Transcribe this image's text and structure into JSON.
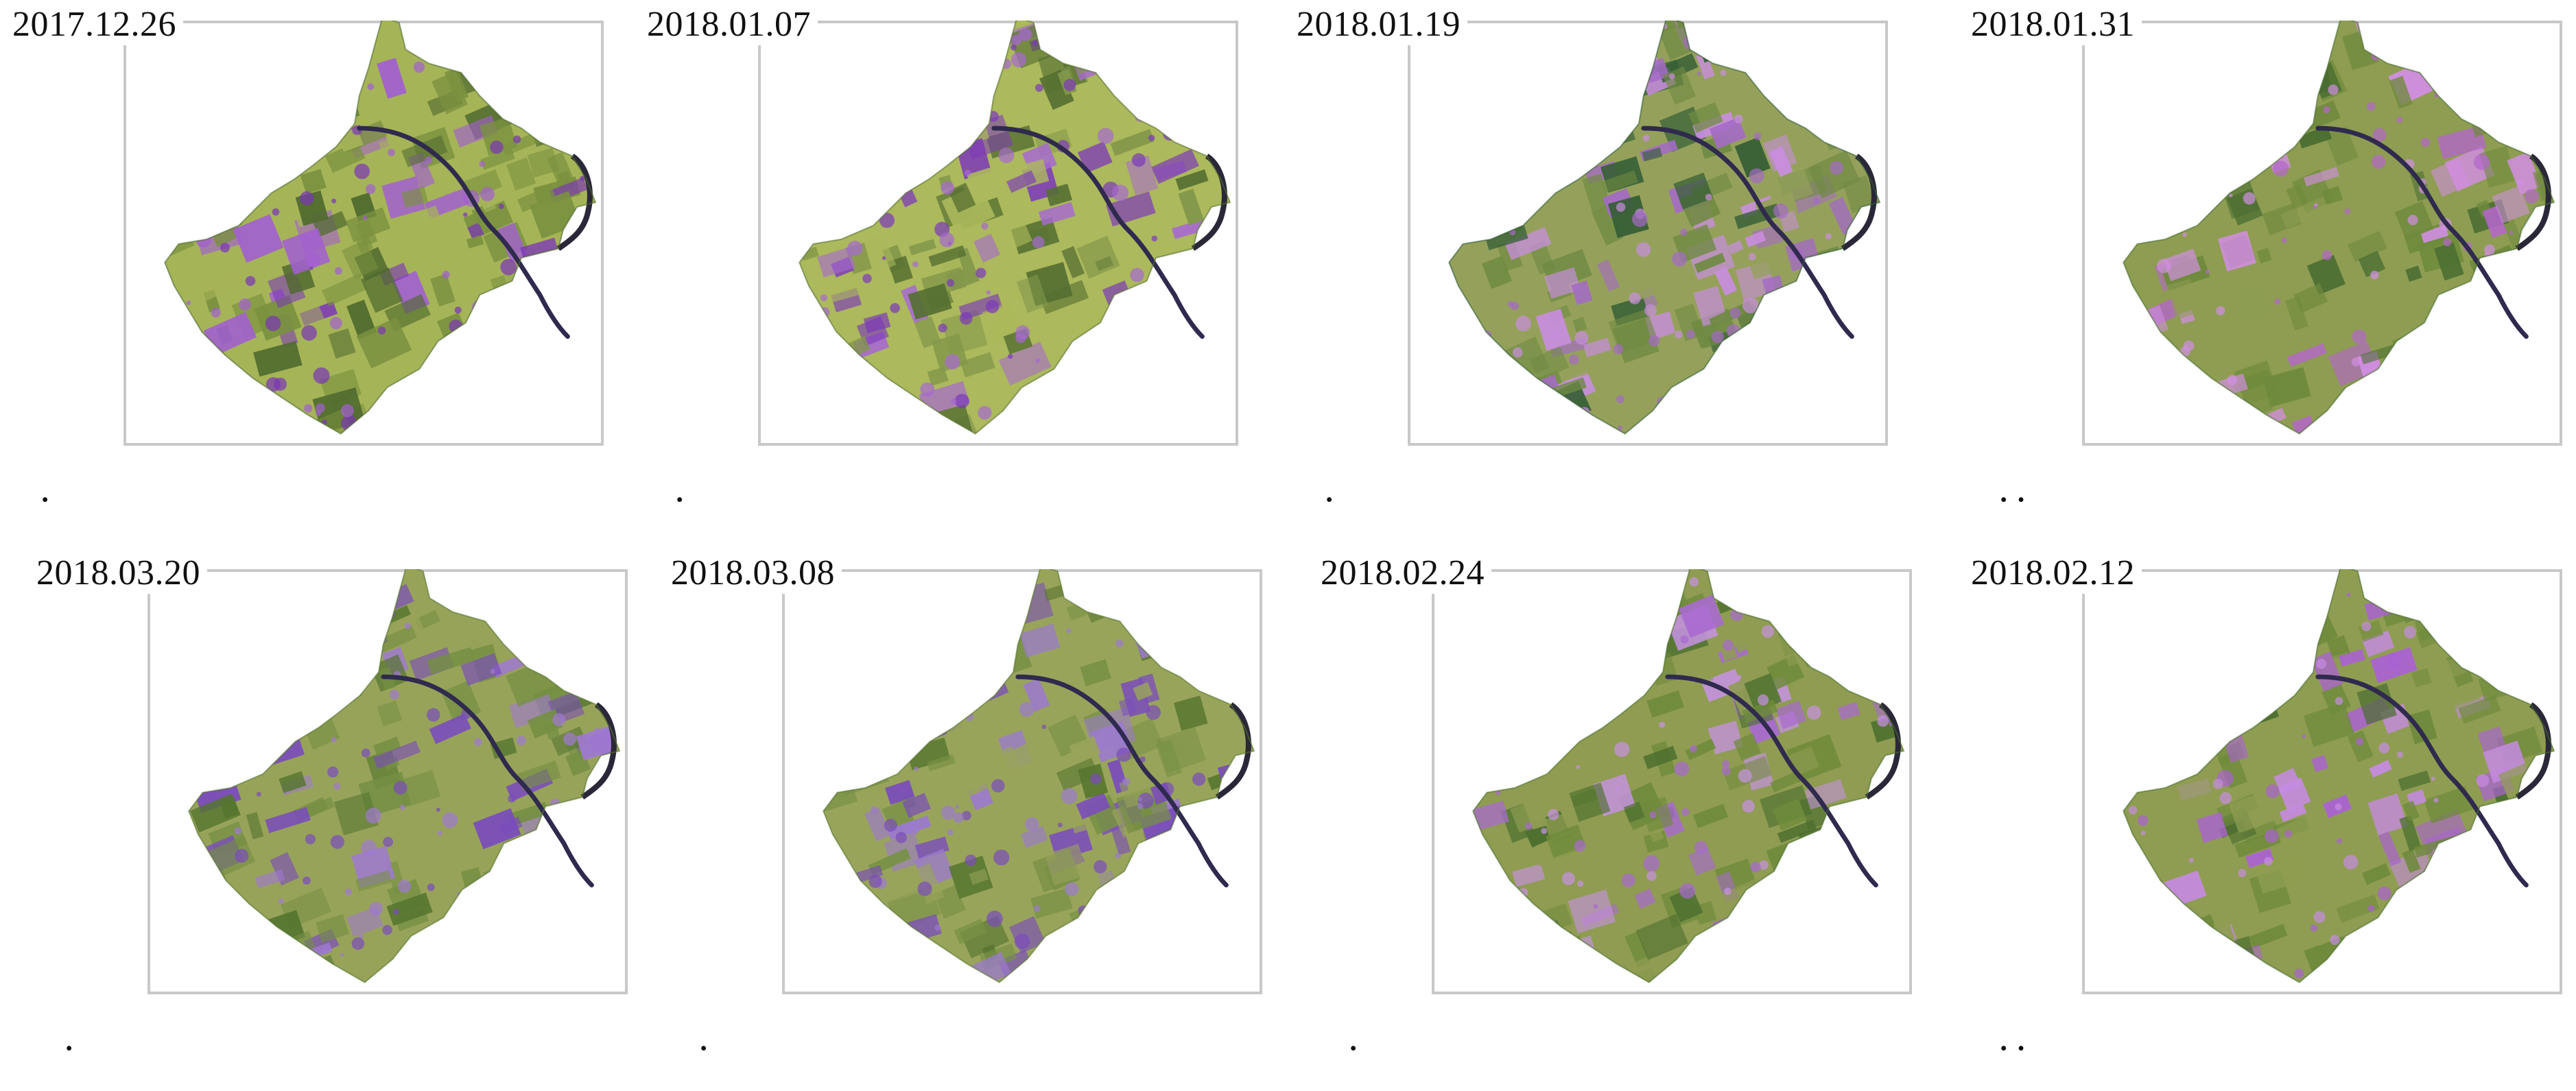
{
  "panels": [
    {
      "date": "2017.12.26",
      "dots": "·",
      "palette": {
        "base": "#a6b458",
        "mid": "#7a913f",
        "dark": "#4f6a2e",
        "accent": "#7a35b8",
        "soft": "#a25fd1"
      }
    },
    {
      "date": "2018.01.07",
      "dots": "·",
      "palette": {
        "base": "#acb95c",
        "mid": "#82974a",
        "dark": "#556f31",
        "accent": "#7c39ba",
        "soft": "#a769d2"
      }
    },
    {
      "date": "2018.01.19",
      "dots": "·",
      "palette": {
        "base": "#95a15b",
        "mid": "#6f8a42",
        "dark": "#355e36",
        "accent": "#a46bc5",
        "soft": "#c98de0"
      }
    },
    {
      "date": "2018.01.31",
      "dots": "··",
      "palette": {
        "base": "#8e9d52",
        "mid": "#6f8a3d",
        "dark": "#496d31",
        "accent": "#b466cb",
        "soft": "#d28ee2"
      }
    },
    {
      "date": "2018.03.20",
      "dots": "·",
      "palette": {
        "base": "#98a35a",
        "mid": "#748f43",
        "dark": "#55752f",
        "accent": "#7a4cbc",
        "soft": "#9f79d1"
      }
    },
    {
      "date": "2018.03.08",
      "dots": "·",
      "palette": {
        "base": "#99a45b",
        "mid": "#779145",
        "dark": "#587730",
        "accent": "#7a4cbc",
        "soft": "#9b7acd"
      }
    },
    {
      "date": "2018.02.24",
      "dots": "·",
      "palette": {
        "base": "#8f9c52",
        "mid": "#6f8b3b",
        "dark": "#4c6f2e",
        "accent": "#a86ad1",
        "soft": "#c792e4"
      }
    },
    {
      "date": "2018.02.12",
      "dots": "··",
      "palette": {
        "base": "#8f9d52",
        "mid": "#6e8a3b",
        "dark": "#4b6e2f",
        "accent": "#aa63d2",
        "soft": "#c68be3"
      }
    }
  ]
}
